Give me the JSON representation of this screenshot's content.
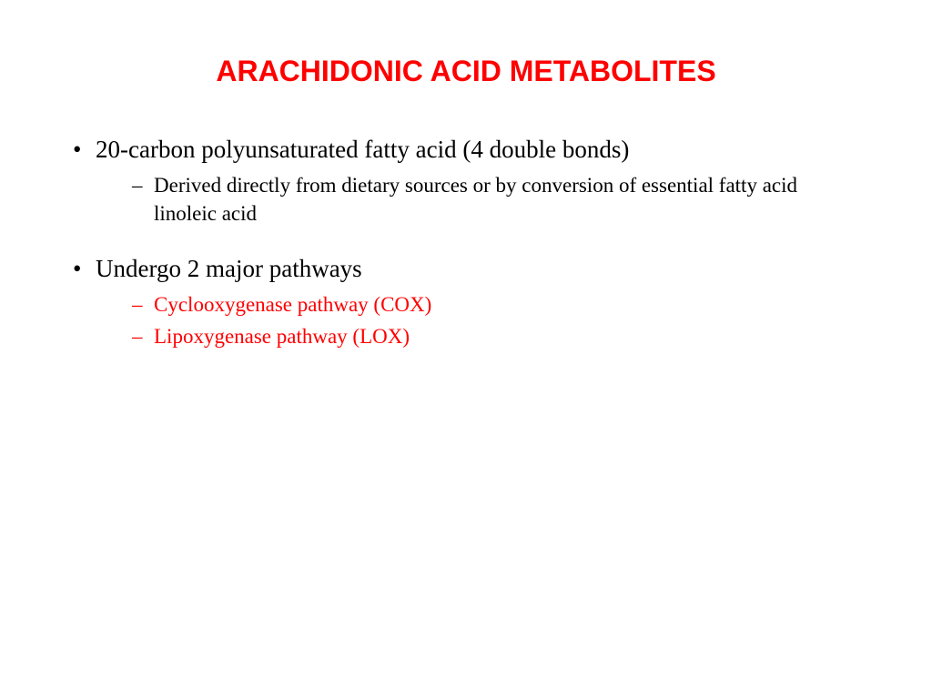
{
  "slide": {
    "title": "ARACHIDONIC ACID METABOLITES",
    "title_color": "#ff0000",
    "text_color": "#000000",
    "highlight_color": "#ff0000",
    "background_color": "#ffffff",
    "bullets": [
      {
        "text": "20-carbon polyunsaturated fatty acid (4 double bonds)",
        "color": "#000000",
        "sub": [
          {
            "text": "Derived directly from dietary sources or by conversion of essential fatty acid linoleic acid",
            "color": "#000000"
          }
        ]
      },
      {
        "text": "Undergo 2 major pathways",
        "color": "#000000",
        "sub": [
          {
            "text": "Cyclooxygenase pathway (COX)",
            "color": "#ff0000"
          },
          {
            "text": "Lipoxygenase pathway  (LOX)",
            "color": "#ff0000"
          }
        ]
      }
    ]
  }
}
